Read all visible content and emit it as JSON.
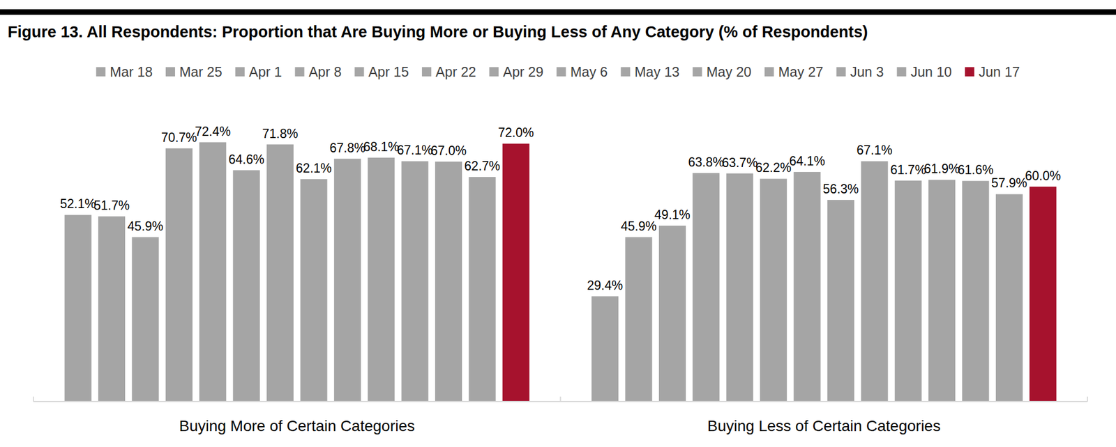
{
  "chart_data": {
    "type": "bar",
    "title": "Figure 13. All Respondents: Proportion that Are Buying More or Buying Less of Any Category (% of Respondents)",
    "categories": [
      "Buying More of Certain Categories",
      "Buying Less of Certain Categories"
    ],
    "series": [
      {
        "name": "Mar 18",
        "color": "#a5a5a5",
        "values": [
          52.1,
          29.4
        ],
        "value_labels": [
          "52.1%",
          "29.4%"
        ]
      },
      {
        "name": "Mar 25",
        "color": "#a5a5a5",
        "values": [
          51.7,
          45.9
        ],
        "value_labels": [
          "51.7%",
          "45.9%"
        ]
      },
      {
        "name": "Apr 1",
        "color": "#a5a5a5",
        "values": [
          45.9,
          49.1
        ],
        "value_labels": [
          "45.9%",
          "49.1%"
        ]
      },
      {
        "name": "Apr 8",
        "color": "#a5a5a5",
        "values": [
          70.7,
          63.8
        ],
        "value_labels": [
          "70.7%",
          "63.8%"
        ]
      },
      {
        "name": "Apr 15",
        "color": "#a5a5a5",
        "values": [
          72.4,
          63.7
        ],
        "value_labels": [
          "72.4%",
          "63.7%"
        ]
      },
      {
        "name": "Apr 22",
        "color": "#a5a5a5",
        "values": [
          64.6,
          62.2
        ],
        "value_labels": [
          "64.6%",
          "62.2%"
        ]
      },
      {
        "name": "Apr 29",
        "color": "#a5a5a5",
        "values": [
          71.8,
          64.1
        ],
        "value_labels": [
          "71.8%",
          "64.1%"
        ]
      },
      {
        "name": "May 6",
        "color": "#a5a5a5",
        "values": [
          62.1,
          56.3
        ],
        "value_labels": [
          "62.1%",
          "56.3%"
        ]
      },
      {
        "name": "May 13",
        "color": "#a5a5a5",
        "values": [
          67.8,
          67.1
        ],
        "value_labels": [
          "67.8%",
          "67.1%"
        ]
      },
      {
        "name": "May 20",
        "color": "#a5a5a5",
        "values": [
          68.1,
          61.7
        ],
        "value_labels": [
          "68.1%",
          "61.7%"
        ]
      },
      {
        "name": "May 27",
        "color": "#a5a5a5",
        "values": [
          67.1,
          61.9
        ],
        "value_labels": [
          "67.1%",
          "61.9%"
        ]
      },
      {
        "name": "Jun 3",
        "color": "#a5a5a5",
        "values": [
          67.0,
          61.6
        ],
        "value_labels": [
          "67.0%",
          "61.6%"
        ]
      },
      {
        "name": "Jun 10",
        "color": "#a5a5a5",
        "values": [
          62.7,
          57.9
        ],
        "value_labels": [
          "62.7%",
          "57.9%"
        ]
      },
      {
        "name": "Jun 17",
        "color": "#a6122d",
        "values": [
          72.0,
          60.0
        ],
        "value_labels": [
          "72.0%",
          "60.0%"
        ]
      }
    ],
    "ylim": [
      0,
      80
    ],
    "yticks": [],
    "grid": false,
    "legend": "top",
    "data_labels": true,
    "tick_labels": "x"
  }
}
